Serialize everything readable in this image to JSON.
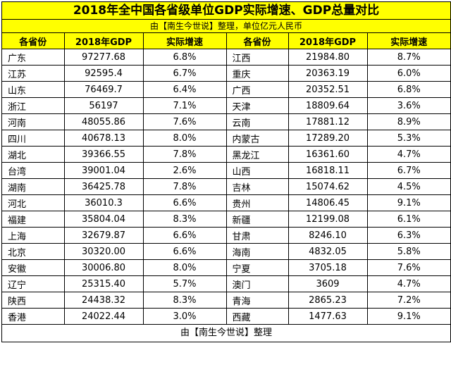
{
  "title": "2018年全中国各省级单位GDP实际增速、GDP总量对比",
  "subtitle": "由【南生今世说】整理，单位亿元人民币",
  "headers": [
    "各省份",
    "2018年GDP",
    "实际增速",
    "各省份",
    "2018年GDP",
    "实际增速"
  ],
  "rows": [
    {
      "p1": "广东",
      "g1": "97277.68",
      "r1": "6.8%",
      "p2": "江西",
      "g2": "21984.80",
      "r2": "8.7%"
    },
    {
      "p1": "江苏",
      "g1": "92595.4",
      "r1": "6.7%",
      "p2": "重庆",
      "g2": "20363.19",
      "r2": "6.0%"
    },
    {
      "p1": "山东",
      "g1": "76469.7",
      "r1": "6.4%",
      "p2": "广西",
      "g2": "20352.51",
      "r2": "6.8%"
    },
    {
      "p1": "浙江",
      "g1": "56197",
      "r1": "7.1%",
      "p2": "天津",
      "g2": "18809.64",
      "r2": "3.6%"
    },
    {
      "p1": "河南",
      "g1": "48055.86",
      "r1": "7.6%",
      "p2": "云南",
      "g2": "17881.12",
      "r2": "8.9%"
    },
    {
      "p1": "四川",
      "g1": "40678.13",
      "r1": "8.0%",
      "p2": "内蒙古",
      "g2": "17289.20",
      "r2": "5.3%"
    },
    {
      "p1": "湖北",
      "g1": "39366.55",
      "r1": "7.8%",
      "p2": "黑龙江",
      "g2": "16361.60",
      "r2": "4.7%"
    },
    {
      "p1": "台湾",
      "g1": "39001.04",
      "r1": "2.6%",
      "p2": "山西",
      "g2": "16818.11",
      "r2": "6.7%"
    },
    {
      "p1": "湖南",
      "g1": "36425.78",
      "r1": "7.8%",
      "p2": "吉林",
      "g2": "15074.62",
      "r2": "4.5%"
    },
    {
      "p1": "河北",
      "g1": "36010.3",
      "r1": "6.6%",
      "p2": "贵州",
      "g2": "14806.45",
      "r2": "9.1%"
    },
    {
      "p1": "福建",
      "g1": "35804.04",
      "r1": "8.3%",
      "p2": "新疆",
      "g2": "12199.08",
      "r2": "6.1%"
    },
    {
      "p1": "上海",
      "g1": "32679.87",
      "r1": "6.6%",
      "p2": "甘肃",
      "g2": "8246.10",
      "r2": "6.3%"
    },
    {
      "p1": "北京",
      "g1": "30320.00",
      "r1": "6.6%",
      "p2": "海南",
      "g2": "4832.05",
      "r2": "5.8%"
    },
    {
      "p1": "安徽",
      "g1": "30006.80",
      "r1": "8.0%",
      "p2": "宁夏",
      "g2": "3705.18",
      "r2": "7.6%"
    },
    {
      "p1": "辽宁",
      "g1": "25315.40",
      "r1": "5.7%",
      "p2": "澳门",
      "g2": "3609",
      "r2": "4.7%"
    },
    {
      "p1": "陕西",
      "g1": "24438.32",
      "r1": "8.3%",
      "p2": "青海",
      "g2": "2865.23",
      "r2": "7.2%"
    },
    {
      "p1": "香港",
      "g1": "24022.44",
      "r1": "3.0%",
      "p2": "西藏",
      "g2": "1477.63",
      "r2": "9.1%"
    }
  ],
  "footer": "由【南生今世说】整理"
}
